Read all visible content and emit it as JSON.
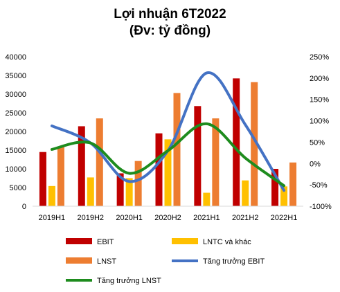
{
  "chart_data": {
    "type": "bar+line",
    "title": "Lợi nhuận 6T2022",
    "subtitle": "(Đv: tỷ đồng)",
    "categories": [
      "2019H1",
      "2019H2",
      "2020H1",
      "2020H2",
      "2021H1",
      "2021H2",
      "2022H1"
    ],
    "bar_series": [
      {
        "name": "EBIT",
        "color": "#C00000",
        "values": [
          14500,
          21400,
          8800,
          19500,
          26800,
          34200,
          10000
        ]
      },
      {
        "name": "LNTC và khác",
        "color": "#FFC000",
        "values": [
          5400,
          7700,
          7500,
          17900,
          3600,
          6900,
          5300
        ]
      },
      {
        "name": "LNST",
        "color": "#ED7D31",
        "values": [
          16000,
          23500,
          12100,
          30300,
          23500,
          33200,
          11700
        ]
      }
    ],
    "line_series": [
      {
        "name": "Tăng trưởng EBIT",
        "color": "#4472C4",
        "axis": "right",
        "values": [
          88,
          48,
          -42,
          30,
          212,
          91,
          -63
        ]
      },
      {
        "name": "Tăng trưởng LNST",
        "color": "#1E8C1E",
        "axis": "right",
        "values": [
          33,
          48,
          -23,
          30,
          93,
          13,
          -52
        ]
      }
    ],
    "y_left": {
      "min": 0,
      "max": 40000,
      "step": 5000,
      "ticks": [
        "0",
        "5000",
        "10000",
        "15000",
        "20000",
        "25000",
        "30000",
        "35000",
        "40000"
      ]
    },
    "y_right": {
      "min": -100,
      "max": 250,
      "step": 50,
      "ticks": [
        "-100%",
        "-50%",
        "0%",
        "50%",
        "100%",
        "150%",
        "200%",
        "250%"
      ]
    },
    "grid": false,
    "legend_position": "bottom"
  }
}
